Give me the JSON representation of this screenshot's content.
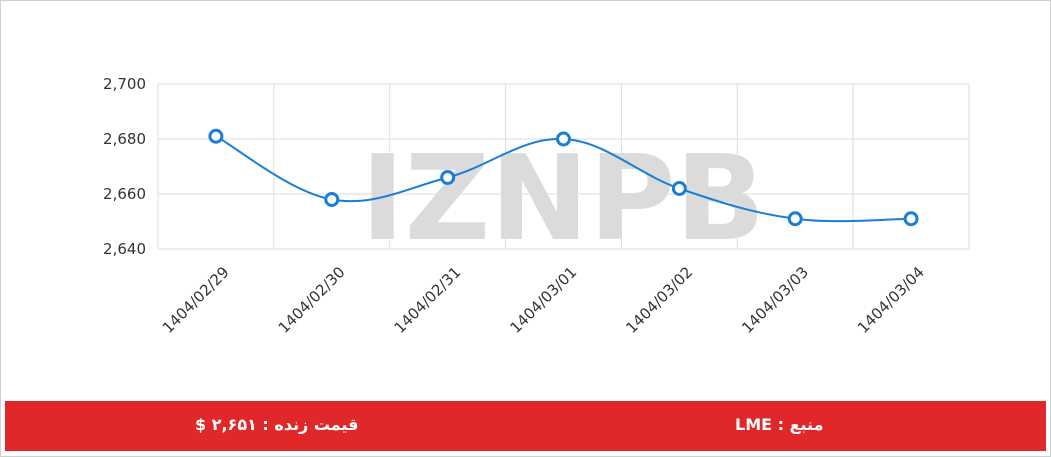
{
  "chart_data": {
    "type": "line",
    "watermark": "IZNPB",
    "categories": [
      "1404/02/29",
      "1404/02/30",
      "1404/02/31",
      "1404/03/01",
      "1404/03/02",
      "1404/03/03",
      "1404/03/04"
    ],
    "values": [
      2681,
      2658,
      2666,
      2680,
      2662,
      2651,
      2651
    ],
    "color": "#1a7fd4",
    "ylim": [
      2640,
      2700
    ],
    "yticks": [
      {
        "value": 2640,
        "label": "2,640"
      },
      {
        "value": 2660,
        "label": "2,660"
      },
      {
        "value": 2680,
        "label": "2,680"
      },
      {
        "value": 2700,
        "label": "2,700"
      }
    ],
    "grid": true
  },
  "footer": {
    "source": "منبع : LME",
    "live_price": "قیمت زنده : ۲,۶۵۱ $"
  }
}
